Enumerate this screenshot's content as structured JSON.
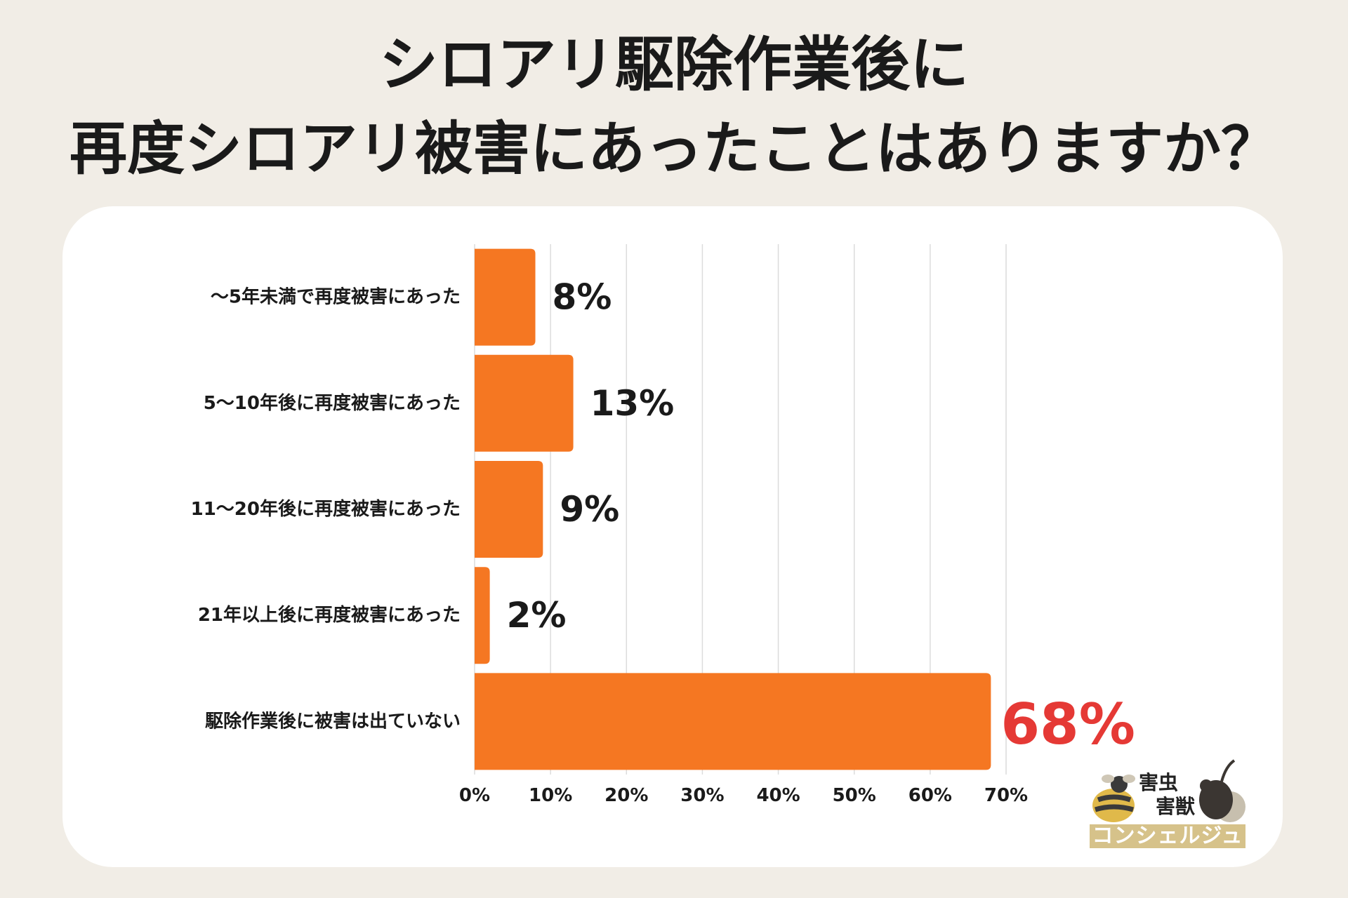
{
  "title": {
    "line1": "シロアリ駆除作業後に",
    "line2": "再度シロアリ被害にあったことはありますか？"
  },
  "colors": {
    "bar": "#f57722",
    "highlight": "#e53935",
    "label": "#1a1a1a",
    "grid": "#dcdcdc",
    "card": "#ffffff",
    "background": "#f1ede6"
  },
  "chart_data": {
    "type": "bar",
    "orientation": "horizontal",
    "categories": [
      "～5年未満で再度被害にあった",
      "5～10年後に再度被害にあった",
      "11～20年後に再度被害にあった",
      "21年以上後に再度被害にあった",
      "駆除作業後に被害は出ていない"
    ],
    "values": [
      8,
      13,
      9,
      2,
      68
    ],
    "value_labels": [
      "8%",
      "13%",
      "9%",
      "2%",
      "68%"
    ],
    "highlight_index": 4,
    "xlim": [
      0,
      70
    ],
    "x_ticks": [
      "0%",
      "10%",
      "20%",
      "30%",
      "40%",
      "50%",
      "60%",
      "70%"
    ],
    "grid": true,
    "title": "",
    "xlabel": "",
    "ylabel": ""
  },
  "logo": {
    "line1": "害虫",
    "line2": "害獣",
    "band": "コンシェルジュ",
    "icons": [
      "bee-icon",
      "mouse-icon"
    ]
  }
}
